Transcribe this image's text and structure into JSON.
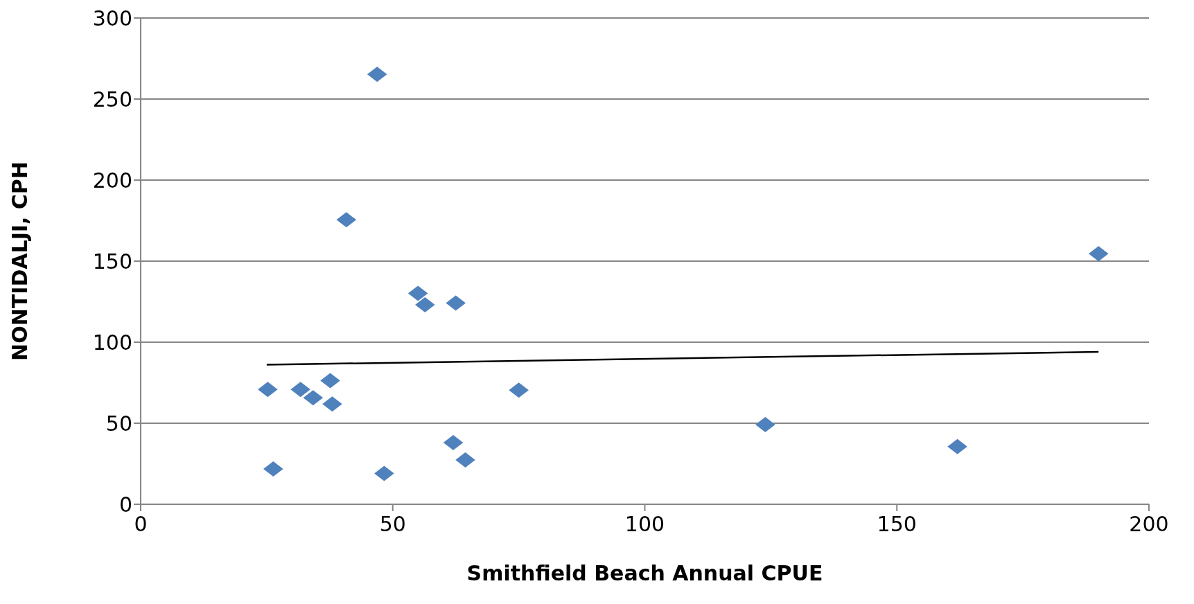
{
  "chart_data": {
    "type": "scatter",
    "xlabel": "Smithfield Beach Annual CPUE",
    "ylabel": "NONTIDALJI, CPH",
    "xlim": [
      0,
      200
    ],
    "xticks": [
      0,
      50,
      100,
      150,
      200
    ],
    "ylim": [
      0,
      300
    ],
    "yticks": [
      0,
      50,
      100,
      150,
      200,
      250,
      300
    ],
    "grid": "y",
    "series": [
      {
        "marker": "diamond",
        "color": "#4f81bd",
        "x": [
          25.2,
          26.3,
          31.7,
          34.2,
          37.6,
          38.0,
          40.8,
          46.9,
          48.3,
          55.0,
          56.4,
          62.5,
          62.0,
          64.4,
          75.0,
          123.9,
          162.0,
          190.0
        ],
        "values": [
          70.8,
          21.8,
          70.8,
          65.7,
          76.3,
          61.9,
          175.5,
          265.3,
          19.0,
          130.1,
          123.1,
          124.1,
          38.0,
          27.3,
          70.4,
          49.1,
          35.6,
          154.6
        ]
      },
      {
        "type": "line",
        "marker": "none",
        "color": "#000000",
        "x": [
          25,
          190
        ],
        "values": [
          86.1,
          94.0
        ]
      }
    ]
  }
}
